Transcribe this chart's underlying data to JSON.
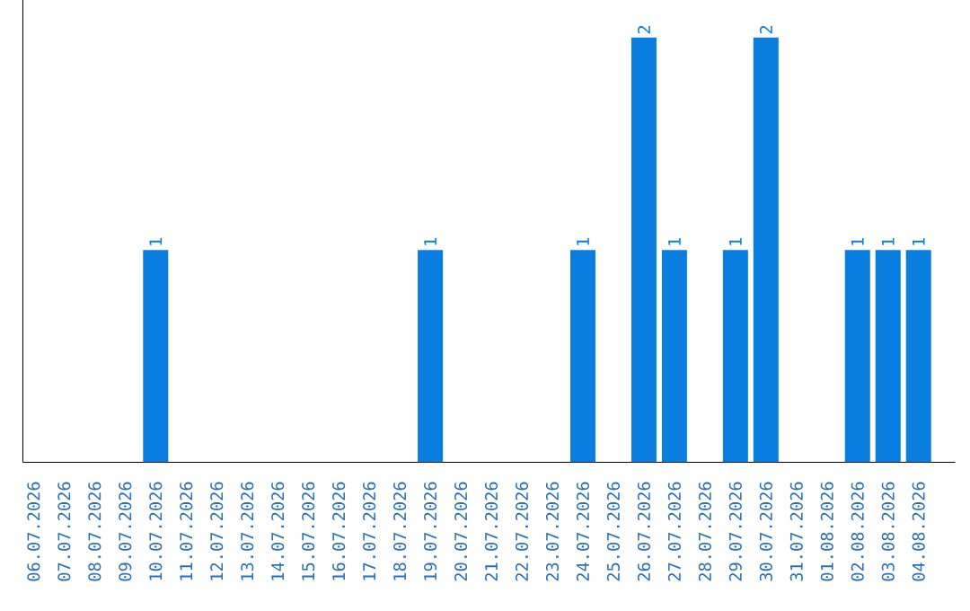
{
  "chart_data": {
    "type": "bar",
    "categories": [
      "06.07.2026",
      "07.07.2026",
      "08.07.2026",
      "09.07.2026",
      "10.07.2026",
      "11.07.2026",
      "12.07.2026",
      "13.07.2026",
      "14.07.2026",
      "15.07.2026",
      "16.07.2026",
      "17.07.2026",
      "18.07.2026",
      "19.07.2026",
      "20.07.2026",
      "21.07.2026",
      "22.07.2026",
      "23.07.2026",
      "24.07.2026",
      "25.07.2026",
      "26.07.2026",
      "27.07.2026",
      "28.07.2026",
      "29.07.2026",
      "30.07.2026",
      "31.07.2026",
      "01.08.2026",
      "02.08.2026",
      "03.08.2026",
      "04.08.2026"
    ],
    "values": [
      0,
      0,
      0,
      0,
      1,
      0,
      0,
      0,
      0,
      0,
      0,
      0,
      0,
      1,
      0,
      0,
      0,
      0,
      1,
      0,
      2,
      1,
      0,
      1,
      2,
      0,
      0,
      1,
      1,
      1
    ],
    "value_labels": [
      null,
      null,
      null,
      null,
      "1",
      null,
      null,
      null,
      null,
      null,
      null,
      null,
      null,
      "1",
      null,
      null,
      null,
      null,
      "1",
      null,
      "2",
      "1",
      null,
      "1",
      "2",
      null,
      null,
      "1",
      "1",
      "1"
    ],
    "color": "#0a7de0"
  }
}
